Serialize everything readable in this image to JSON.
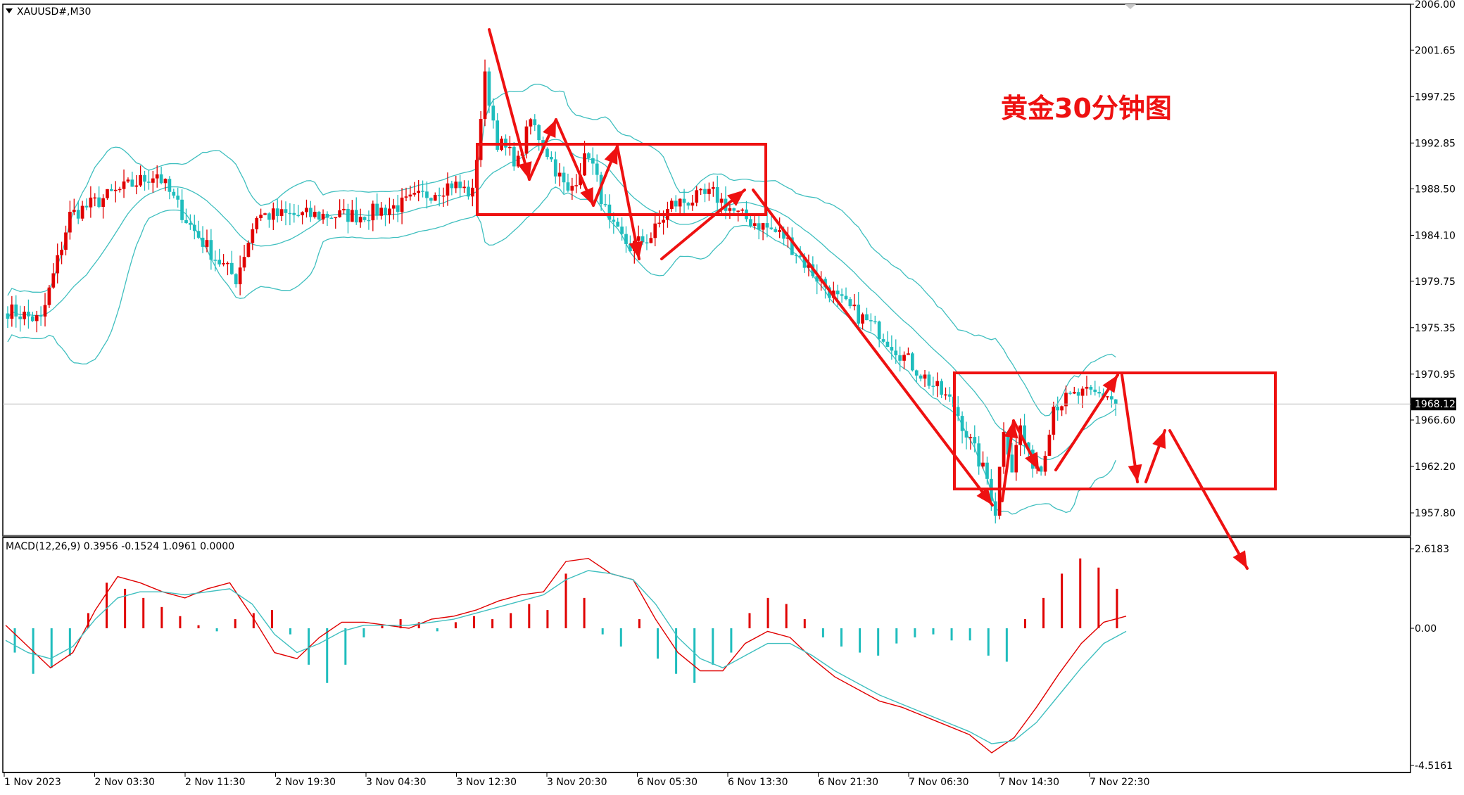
{
  "symbol_label": "XAUUSD#,M30",
  "annotation_title": "黄金30分钟图",
  "price_axis_ticks": [
    "2006.00",
    "2001.65",
    "1997.25",
    "1992.85",
    "1988.50",
    "1984.10",
    "1979.75",
    "1975.35",
    "1970.95",
    "1966.60",
    "1962.20",
    "1957.80"
  ],
  "current_price_label": "1968.12",
  "macd_label": "MACD(12,26,9) 0.3956 -0.1524 1.0961 0.0000",
  "macd_axis_ticks": [
    "2.6183",
    "0.00",
    "-4.5161"
  ],
  "time_axis_ticks": [
    "1 Nov 2023",
    "2 Nov 03:30",
    "2 Nov 11:30",
    "2 Nov 19:30",
    "3 Nov 04:30",
    "3 Nov 12:30",
    "3 Nov 20:30",
    "6 Nov 05:30",
    "6 Nov 13:30",
    "6 Nov 21:30",
    "7 Nov 06:30",
    "7 Nov 14:30",
    "7 Nov 22:30"
  ],
  "colors": {
    "bull": "#e00000",
    "bear": "#1fbdbd",
    "band": "#3fbfbf",
    "macd_line": "#e00000",
    "signal_line": "#3fbfbf",
    "annotation": "#ee1111",
    "grid_border": "#000000"
  },
  "chart_data": [
    {
      "type": "candlestick",
      "title": "XAUUSD#,M30",
      "ylim": [
        1955.6,
        2006.0
      ],
      "indicators": [
        "Bollinger Bands"
      ],
      "current_price": 1968.12,
      "close_path": [
        {
          "x": 0,
          "close": 1977
        },
        {
          "x": 8,
          "close": 1976
        },
        {
          "x": 15,
          "close": 1986
        },
        {
          "x": 25,
          "close": 1988
        },
        {
          "x": 36,
          "close": 1990
        },
        {
          "x": 44,
          "close": 1985
        },
        {
          "x": 50,
          "close": 1982
        },
        {
          "x": 55,
          "close": 1980
        },
        {
          "x": 60,
          "close": 1986
        },
        {
          "x": 73,
          "close": 1986
        },
        {
          "x": 85,
          "close": 1986
        },
        {
          "x": 95,
          "close": 1987
        },
        {
          "x": 107,
          "close": 1989
        },
        {
          "x": 112,
          "close": 1988
        },
        {
          "x": 115,
          "close": 1999
        },
        {
          "x": 118,
          "close": 1993
        },
        {
          "x": 123,
          "close": 1991
        },
        {
          "x": 126,
          "close": 1995
        },
        {
          "x": 130,
          "close": 1992
        },
        {
          "x": 135,
          "close": 1988
        },
        {
          "x": 140,
          "close": 1992
        },
        {
          "x": 145,
          "close": 1985
        },
        {
          "x": 150,
          "close": 1983
        },
        {
          "x": 155,
          "close": 1984
        },
        {
          "x": 160,
          "close": 1987
        },
        {
          "x": 170,
          "close": 1988
        },
        {
          "x": 176,
          "close": 1986
        },
        {
          "x": 182,
          "close": 1985
        },
        {
          "x": 187,
          "close": 1984
        },
        {
          "x": 193,
          "close": 1981
        },
        {
          "x": 200,
          "close": 1978
        },
        {
          "x": 210,
          "close": 1975
        },
        {
          "x": 220,
          "close": 1971
        },
        {
          "x": 228,
          "close": 1968
        },
        {
          "x": 236,
          "close": 1961
        },
        {
          "x": 238,
          "close": 1958
        },
        {
          "x": 240,
          "close": 1966
        },
        {
          "x": 242,
          "close": 1962
        },
        {
          "x": 244,
          "close": 1966
        },
        {
          "x": 246,
          "close": 1963
        },
        {
          "x": 249,
          "close": 1962
        },
        {
          "x": 252,
          "close": 1968
        },
        {
          "x": 258,
          "close": 1969
        },
        {
          "x": 265,
          "close": 1969
        },
        {
          "x": 267,
          "close": 1968.12
        }
      ]
    },
    {
      "type": "bar",
      "title": "MACD(12,26,9) 0.3956 -0.1524 1.0961 0.0000",
      "ylim": [
        -4.5161,
        2.6183
      ],
      "series": [
        {
          "name": "histogram",
          "values": [
            -0.8,
            -1.5,
            -1.3,
            -0.9,
            0.5,
            1.5,
            1.3,
            1.0,
            0.7,
            0.4,
            0.1,
            -0.1,
            0.3,
            0.5,
            0.6,
            -0.2,
            -1.2,
            -1.8,
            -1.2,
            -0.3,
            0.1,
            0.3,
            0.2,
            -0.1,
            0.2,
            0.4,
            0.3,
            0.5,
            0.8,
            0.6,
            1.8,
            1.0,
            -0.2,
            -0.6,
            0.3,
            -1.0,
            -1.5,
            -1.8,
            -1.2,
            -0.8,
            0.5,
            1.0,
            0.8,
            0.3,
            -0.3,
            -0.6,
            -0.8,
            -0.9,
            -0.5,
            -0.3,
            -0.2,
            -0.4,
            -0.4,
            -0.9,
            -1.1,
            0.3,
            1.0,
            1.8,
            2.3,
            2.0,
            1.3
          ]
        },
        {
          "name": "macd",
          "values": [
            0.1,
            -0.6,
            -1.3,
            -0.8,
            0.6,
            1.7,
            1.5,
            1.2,
            1.0,
            1.3,
            1.5,
            0.4,
            -0.8,
            -1.0,
            -0.3,
            0.2,
            0.2,
            0.1,
            0.0,
            0.3,
            0.4,
            0.6,
            0.9,
            1.1,
            1.2,
            2.2,
            2.3,
            1.8,
            1.6,
            0.3,
            -0.8,
            -1.4,
            -1.4,
            -0.5,
            -0.1,
            -0.3,
            -1.0,
            -1.6,
            -2.0,
            -2.4,
            -2.6,
            -2.9,
            -3.2,
            -3.5,
            -4.1,
            -3.6,
            -2.6,
            -1.5,
            -0.5,
            0.2,
            0.4
          ]
        },
        {
          "name": "signal",
          "values": [
            -0.4,
            -0.8,
            -1.0,
            -0.6,
            0.3,
            1.0,
            1.2,
            1.2,
            1.1,
            1.2,
            1.3,
            0.8,
            -0.2,
            -0.8,
            -0.5,
            -0.1,
            0.1,
            0.1,
            0.1,
            0.2,
            0.3,
            0.5,
            0.7,
            0.9,
            1.1,
            1.6,
            1.9,
            1.8,
            1.6,
            0.8,
            -0.3,
            -1.0,
            -1.3,
            -0.9,
            -0.5,
            -0.5,
            -0.9,
            -1.4,
            -1.8,
            -2.2,
            -2.5,
            -2.8,
            -3.1,
            -3.4,
            -3.8,
            -3.7,
            -3.1,
            -2.2,
            -1.3,
            -0.5,
            -0.1
          ]
        }
      ]
    }
  ]
}
